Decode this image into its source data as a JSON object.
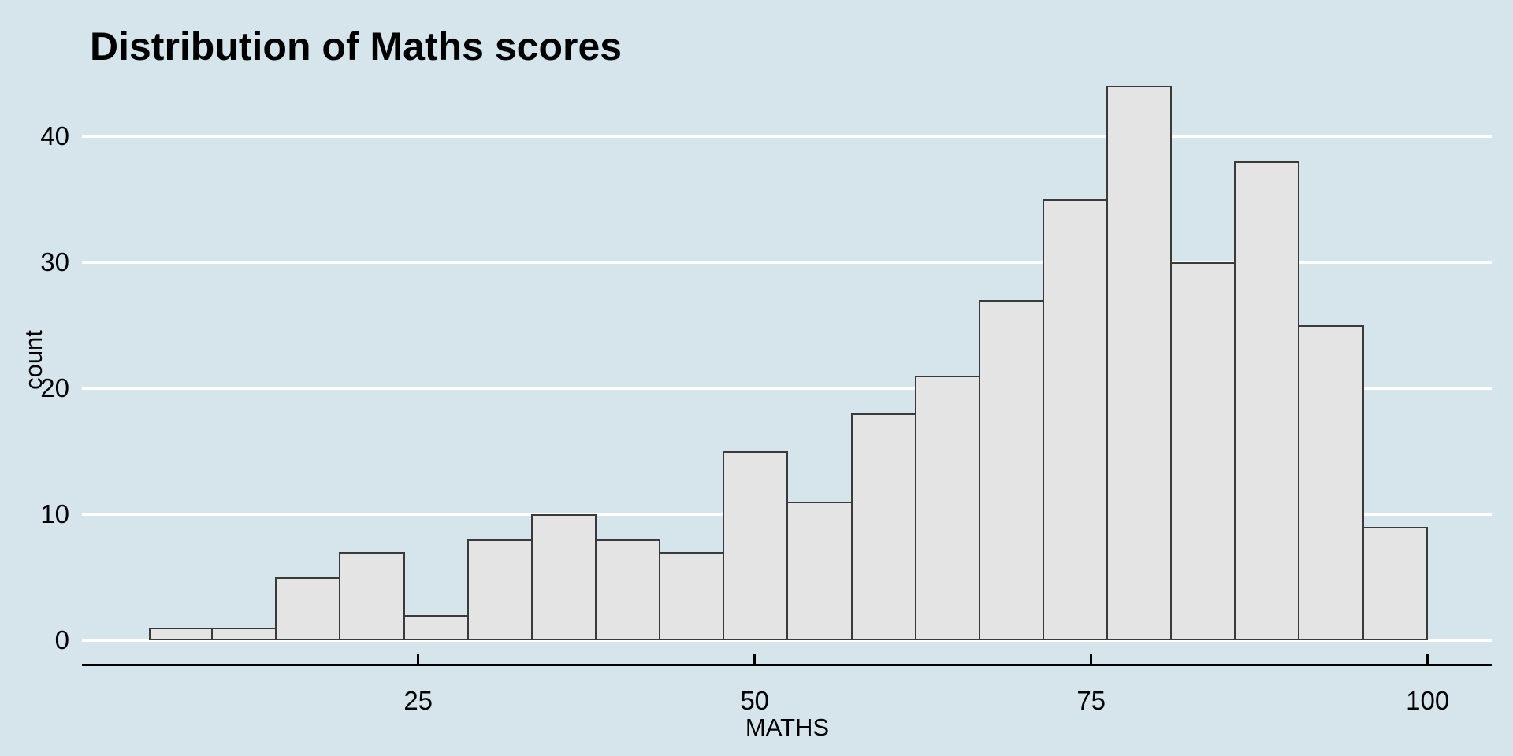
{
  "title": "Distribution of Maths scores",
  "chart_data": {
    "type": "bar",
    "subtype": "histogram",
    "title": "Distribution of Maths scores",
    "xlabel": "MATHS",
    "ylabel": "count",
    "bin_start": 5,
    "bin_width": 4.75,
    "bin_edges": [
      5,
      9.75,
      14.5,
      19.25,
      24,
      28.75,
      33.5,
      38.25,
      43,
      47.75,
      52.5,
      57.25,
      62,
      66.75,
      71.5,
      76.25,
      81,
      85.75,
      90.5,
      95.25,
      100
    ],
    "counts": [
      1,
      1,
      5,
      7,
      2,
      8,
      10,
      8,
      7,
      15,
      11,
      18,
      21,
      27,
      35,
      44,
      30,
      38,
      25,
      9
    ],
    "x_ticks": [
      25,
      50,
      75,
      100
    ],
    "y_ticks": [
      0,
      10,
      20,
      30,
      40
    ],
    "xlim": [
      0,
      104.7
    ],
    "ylim": [
      0,
      45
    ],
    "grid": "horizontal-only",
    "legend": "none",
    "colors": {
      "background": "#d6e4ec",
      "bar_fill": "#e4e4e4",
      "bar_border": "#3a3a3a",
      "gridline": "#ffffff",
      "axis_line": "#000000",
      "text": "#000000"
    }
  }
}
